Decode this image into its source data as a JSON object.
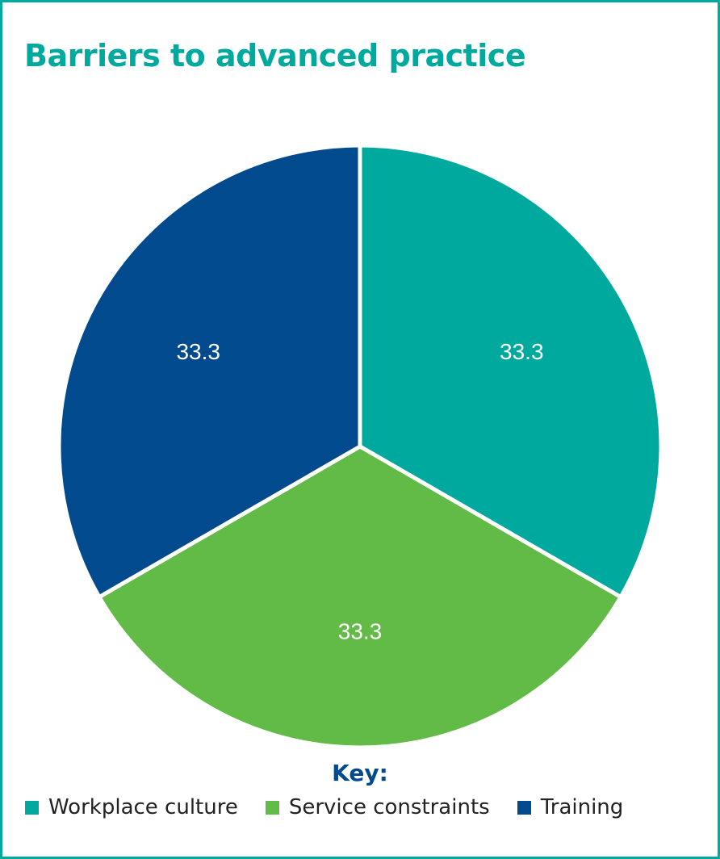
{
  "chart_data": {
    "type": "pie",
    "title": "Barriers to advanced practice",
    "legend_title": "Key:",
    "legend_position": "bottom",
    "slices": [
      {
        "name": "Workplace culture",
        "value": 33.3,
        "label": "33.3",
        "color": "#00a99d"
      },
      {
        "name": "Service constraints",
        "value": 33.3,
        "label": "33.3",
        "color": "#62bb46"
      },
      {
        "name": "Training",
        "value": 33.3,
        "label": "33.3",
        "color": "#004a8d"
      }
    ]
  },
  "colors": {
    "border": "#00a99d",
    "title": "#00a99d",
    "key_title": "#004a8d",
    "slice_separator": "#ffffff"
  }
}
